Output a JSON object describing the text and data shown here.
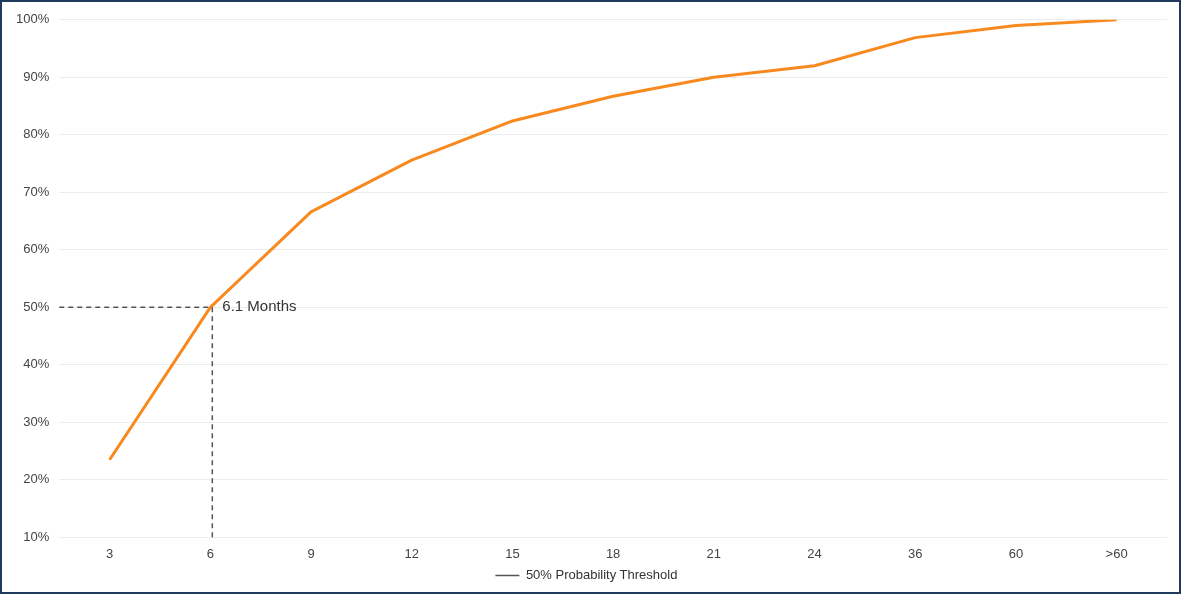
{
  "chart_data": {
    "type": "line",
    "categories": [
      "3",
      "6",
      "9",
      "12",
      "15",
      "18",
      "21",
      "24",
      "36",
      "60",
      ">60"
    ],
    "series": [
      {
        "color": "#f7891f",
        "values": [
          23.5,
          50,
          66.6,
          75.6,
          82.4,
          86.7,
          90,
          92,
          96.9,
          99,
          100
        ]
      }
    ],
    "ylim": [
      10,
      100
    ],
    "yticks": [
      {
        "value": 10,
        "label": "10%"
      },
      {
        "value": 20,
        "label": "20%"
      },
      {
        "value": 30,
        "label": "30%"
      },
      {
        "value": 40,
        "label": "40%"
      },
      {
        "value": 50,
        "label": "50%"
      },
      {
        "value": 60,
        "label": "60%"
      },
      {
        "value": 70,
        "label": "70%"
      },
      {
        "value": 80,
        "label": "80%"
      },
      {
        "value": 90,
        "label": "90%"
      },
      {
        "value": 100,
        "label": "100%"
      }
    ],
    "grid": "y",
    "legend": "bottom",
    "marker": "none",
    "line_style": "solid",
    "ref_lines": [
      {
        "axis": "y",
        "value": 50,
        "label": "50% Probability Threshold",
        "color": "#555555",
        "line_style": "dashed"
      }
    ],
    "annotations": [
      {
        "text": "6.1 Months",
        "x": "6",
        "y": 50
      }
    ]
  }
}
